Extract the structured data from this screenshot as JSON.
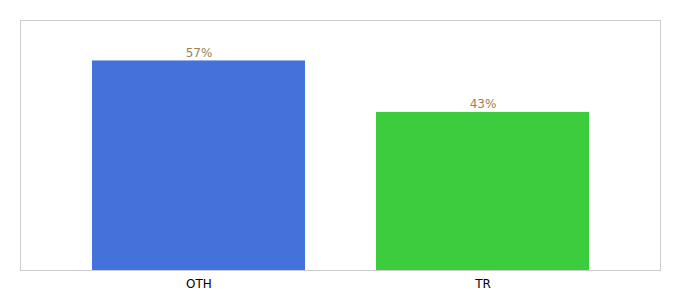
{
  "chart_data": {
    "type": "bar",
    "categories": [
      "OTH",
      "TR"
    ],
    "values": [
      57,
      43
    ],
    "colors": [
      "#4472db",
      "#3dcc3d"
    ],
    "data_labels": true,
    "value_labels": [
      "57%",
      "43%"
    ],
    "ylim": [
      0,
      68
    ],
    "tick_labels": "x"
  }
}
